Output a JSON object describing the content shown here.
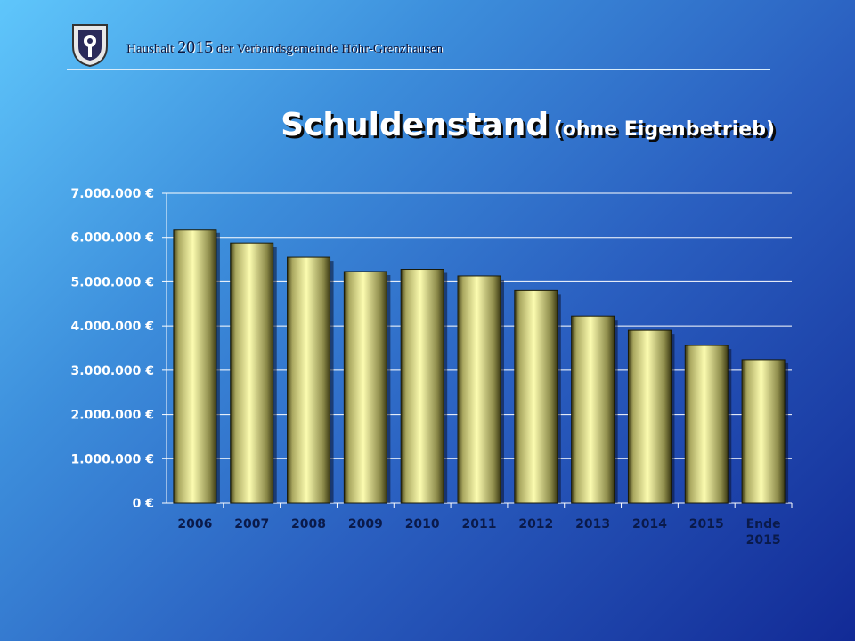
{
  "header": {
    "prefix": "Haushalt",
    "year": "2015",
    "suffix": "der Verbandsgemeinde Höhr-Grenzhausen"
  },
  "title": {
    "main": "Schuldenstand",
    "sub": "(ohne Eigenbetrieb)"
  },
  "logo_icon": "coat-of-arms-icon",
  "colors": {
    "bar_light": "#fcfcb0",
    "bar_dark": "#3c3a14",
    "text_dark": "#0a1a4a"
  },
  "chart_data": {
    "type": "bar",
    "categories": [
      "2006",
      "2007",
      "2008",
      "2009",
      "2010",
      "2011",
      "2012",
      "2013",
      "2014",
      "2015",
      "Ende 2015"
    ],
    "values": [
      6180000,
      5870000,
      5550000,
      5230000,
      5280000,
      5130000,
      4800000,
      4220000,
      3900000,
      3560000,
      3240000
    ],
    "yticks": [
      "0 €",
      "1.000.000 €",
      "2.000.000 €",
      "3.000.000 €",
      "4.000.000 €",
      "5.000.000 €",
      "6.000.000 €",
      "7.000.000 €"
    ],
    "ylim": [
      0,
      7000000
    ],
    "grid": true,
    "title": "Schuldenstand (ohne Eigenbetrieb)"
  }
}
